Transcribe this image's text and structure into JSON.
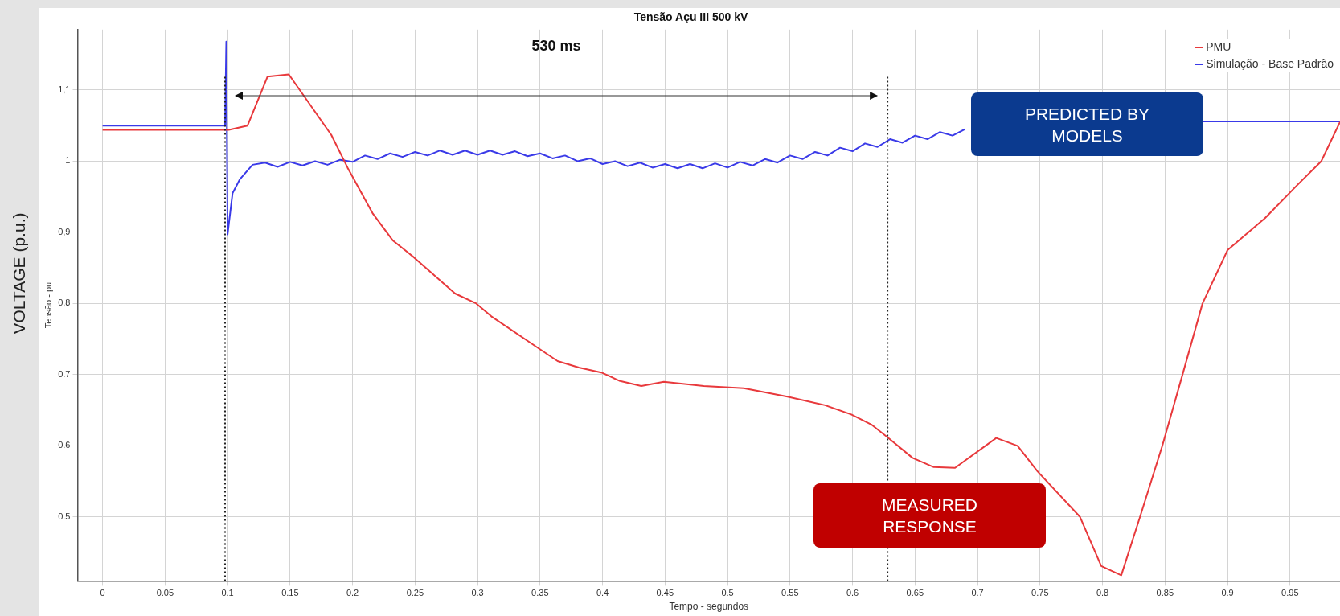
{
  "chart_data": {
    "type": "line",
    "title": "Tensão Açu III 500 kV",
    "xlabel": "Tempo - segundos",
    "ylabel": "Tensão - pu",
    "annotations": [
      "530 ms",
      "PREDICTED BY MODELS",
      "MEASURED RESPONSE",
      "VOLTAGE (p.u.)"
    ],
    "xlim": [
      -0.02,
      0.99
    ],
    "ylim": [
      0.41,
      1.185
    ],
    "xticks": [
      0,
      0.05,
      0.1,
      0.15,
      0.2,
      0.25,
      0.3,
      0.35,
      0.4,
      0.45,
      0.5,
      0.55,
      0.6,
      0.65,
      0.7,
      0.75,
      0.8,
      0.85,
      0.9,
      0.95
    ],
    "yticks": [
      0.5,
      0.6,
      0.7,
      {
        "value": 0.8,
        "label": "0,8"
      },
      {
        "value": 0.9,
        "label": "0,9"
      },
      1,
      {
        "value": 1.1,
        "label": "1,1"
      }
    ],
    "grid": true,
    "legend": "top right",
    "marker": "none",
    "line_style": "solid",
    "ref_lines": [
      {
        "axis": "x",
        "value": 0.098,
        "color": "#222222",
        "line_style": "dotted"
      },
      {
        "axis": "x",
        "value": 0.628,
        "color": "#222222",
        "line_style": "dotted"
      }
    ],
    "series": [
      {
        "name": "PMU",
        "color": "#e8393c",
        "x": [
          0,
          0.101,
          0.116,
          0.132,
          0.149,
          0.183,
          0.196,
          0.216,
          0.232,
          0.249,
          0.282,
          0.299,
          0.311,
          0.348,
          0.364,
          0.381,
          0.399,
          0.414,
          0.431,
          0.449,
          0.481,
          0.513,
          0.548,
          0.578,
          0.599,
          0.615,
          0.628,
          0.648,
          0.665,
          0.682,
          0.715,
          0.732,
          0.748,
          0.782,
          0.799,
          0.815,
          0.83,
          0.848,
          0.864,
          0.88,
          0.9,
          0.93,
          0.955,
          0.975,
          0.99
        ],
        "values": [
          1.044,
          1.044,
          1.05,
          1.119,
          1.122,
          1.037,
          0.991,
          0.927,
          0.889,
          0.865,
          0.814,
          0.8,
          0.782,
          0.738,
          0.719,
          0.71,
          0.703,
          0.691,
          0.684,
          0.69,
          0.684,
          0.681,
          0.669,
          0.657,
          0.644,
          0.63,
          0.612,
          0.583,
          0.57,
          0.569,
          0.611,
          0.6,
          0.564,
          0.5,
          0.431,
          0.418,
          0.5,
          0.601,
          0.7,
          0.8,
          0.875,
          0.92,
          0.965,
          1.0,
          1.055
        ]
      },
      {
        "name": "Simulação - Base Padrão",
        "color": "#3a3ae8",
        "x": [
          0,
          0.098,
          0.099,
          0.1,
          0.104,
          0.11,
          0.12,
          0.13,
          0.14,
          0.15,
          0.16,
          0.17,
          0.18,
          0.19,
          0.2,
          0.21,
          0.22,
          0.23,
          0.24,
          0.25,
          0.26,
          0.27,
          0.28,
          0.29,
          0.3,
          0.31,
          0.32,
          0.33,
          0.34,
          0.35,
          0.36,
          0.37,
          0.38,
          0.39,
          0.4,
          0.41,
          0.42,
          0.43,
          0.44,
          0.45,
          0.46,
          0.47,
          0.48,
          0.49,
          0.5,
          0.51,
          0.52,
          0.53,
          0.54,
          0.55,
          0.56,
          0.57,
          0.58,
          0.59,
          0.6,
          0.61,
          0.62,
          0.63,
          0.64,
          0.65,
          0.66,
          0.67,
          0.68,
          0.69,
          0.7,
          0.75,
          0.8,
          0.85,
          0.88,
          0.99
        ],
        "values": [
          1.05,
          1.05,
          1.168,
          0.897,
          0.955,
          0.975,
          0.995,
          0.998,
          0.992,
          0.999,
          0.994,
          1.0,
          0.995,
          1.002,
          0.999,
          1.008,
          1.003,
          1.011,
          1.006,
          1.013,
          1.008,
          1.015,
          1.009,
          1.015,
          1.009,
          1.015,
          1.009,
          1.014,
          1.007,
          1.011,
          1.004,
          1.008,
          1.0,
          1.004,
          0.996,
          1.0,
          0.993,
          0.998,
          0.991,
          0.996,
          0.99,
          0.996,
          0.99,
          0.997,
          0.991,
          0.999,
          0.994,
          1.003,
          0.998,
          1.008,
          1.003,
          1.013,
          1.008,
          1.019,
          1.014,
          1.025,
          1.02,
          1.031,
          1.026,
          1.036,
          1.031,
          1.041,
          1.036,
          1.045,
          null,
          null,
          null,
          null,
          1.056,
          1.056
        ]
      }
    ]
  }
}
